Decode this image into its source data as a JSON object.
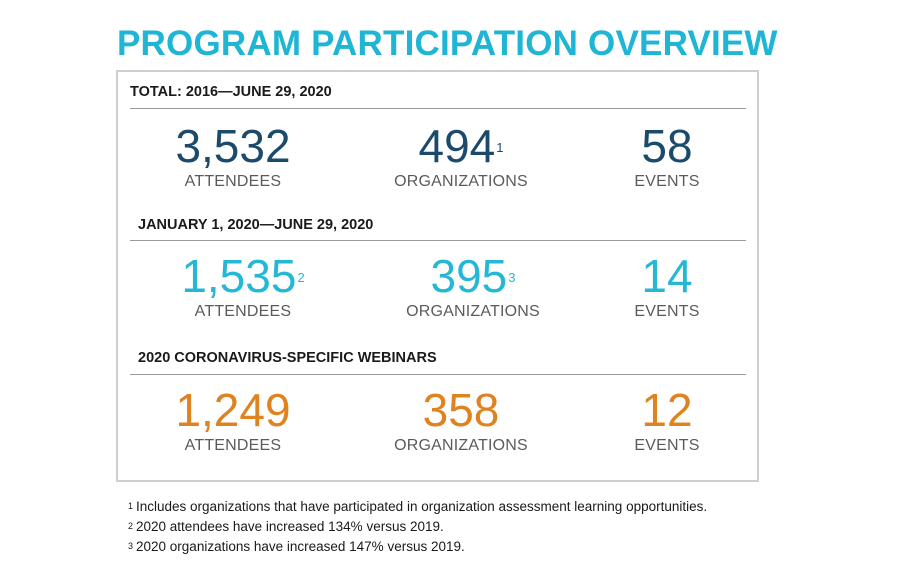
{
  "title": "PROGRAM PARTICIPATION OVERVIEW",
  "colors": {
    "title": "#1fb5d4",
    "navy": "#1b4a6b",
    "cyan": "#24b8d6",
    "orange": "#df8220"
  },
  "sections": [
    {
      "heading": "TOTAL: 2016—JUNE 29, 2020",
      "stats": [
        {
          "value": "3,532",
          "note": "",
          "label": "ATTENDEES"
        },
        {
          "value": "494",
          "note": "1",
          "label": "ORGANIZATIONS"
        },
        {
          "value": "58",
          "note": "",
          "label": "EVENTS"
        }
      ]
    },
    {
      "heading": "JANUARY 1, 2020—JUNE 29, 2020",
      "stats": [
        {
          "value": "1,535",
          "note": "2",
          "label": "ATTENDEES"
        },
        {
          "value": "395",
          "note": "3",
          "label": "ORGANIZATIONS"
        },
        {
          "value": "14",
          "note": "",
          "label": "EVENTS"
        }
      ]
    },
    {
      "heading": "2020 CORONAVIRUS-SPECIFIC WEBINARS",
      "stats": [
        {
          "value": "1,249",
          "note": "",
          "label": "ATTENDEES"
        },
        {
          "value": "358",
          "note": "",
          "label": "ORGANIZATIONS"
        },
        {
          "value": "12",
          "note": "",
          "label": "EVENTS"
        }
      ]
    }
  ],
  "footnotes": [
    {
      "mark": "1",
      "text": "Includes organizations that have participated in organization assessment learning opportunities."
    },
    {
      "mark": "2",
      "text": "2020 attendees have increased 134% versus 2019."
    },
    {
      "mark": "3",
      "text": "2020 organizations have increased 147% versus 2019."
    }
  ]
}
